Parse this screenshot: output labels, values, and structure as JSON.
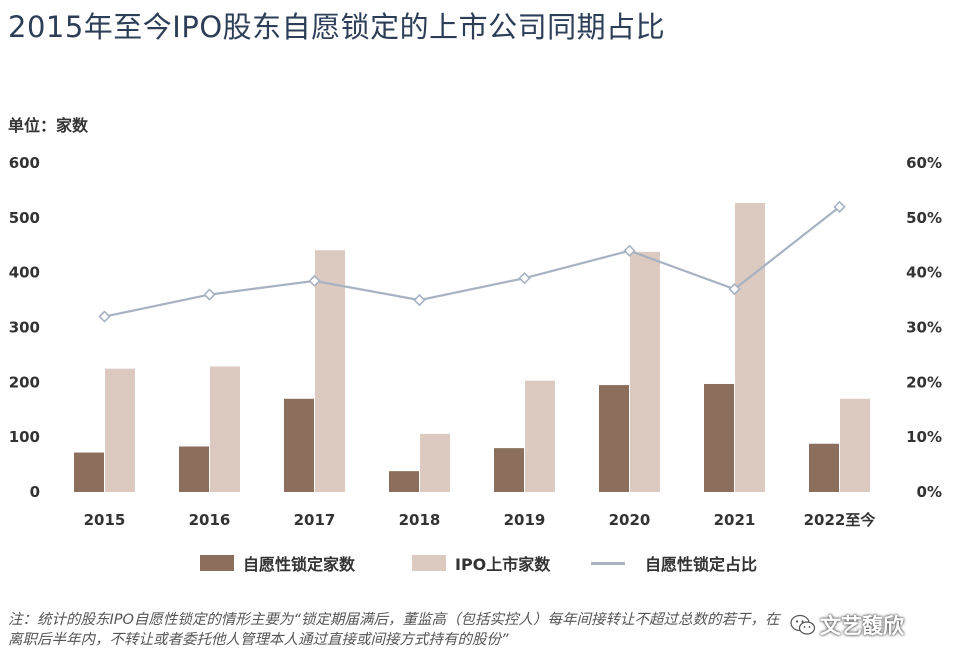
{
  "title": "2015年至今IPO股东自愿锁定的上市公司同期占比",
  "unit_label": "单位：家数",
  "footnote_line1": "注：统计的股东IPO自愿性锁定的情形主要为“锁定期届满后，董监高（包括实控人）每年间接转让不超过总数的若干，在",
  "footnote_line2": "离职后半年内，不转让或者委托他人管理本人通过直接或间接方式持有的股份”",
  "watermark_text": "文艺馥欣",
  "colors": {
    "voluntary": "#8b6f5c",
    "ipo": "#dccac0",
    "ratio_line": "#a7b2c2",
    "title": "#2d3e58"
  },
  "chart_data": {
    "type": "bar",
    "categories": [
      "2015",
      "2016",
      "2017",
      "2018",
      "2019",
      "2020",
      "2021",
      "2022至今"
    ],
    "series": [
      {
        "name": "自愿性锁定家数",
        "type": "bar",
        "axis": "left",
        "values": [
          72,
          83,
          170,
          38,
          80,
          195,
          197,
          88
        ]
      },
      {
        "name": "IPO上市家数",
        "type": "bar",
        "axis": "left",
        "values": [
          225,
          229,
          441,
          106,
          203,
          438,
          527,
          170
        ]
      },
      {
        "name": "自愿性锁定占比",
        "type": "line",
        "axis": "right",
        "values": [
          0.32,
          0.36,
          0.385,
          0.35,
          0.39,
          0.44,
          0.37,
          0.52
        ]
      }
    ],
    "ylim": [
      0,
      600
    ],
    "y_ticks": [
      "0",
      "100",
      "200",
      "300",
      "400",
      "500",
      "600"
    ],
    "y2lim": [
      0,
      0.6
    ],
    "y2_ticks": [
      "0%",
      "10%",
      "20%",
      "30%",
      "40%",
      "50%",
      "60%"
    ],
    "grid": false,
    "legend_position": "bottom"
  }
}
